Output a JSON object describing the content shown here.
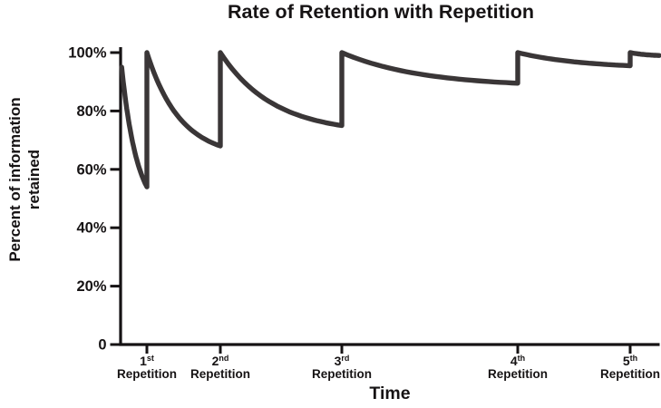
{
  "chart_data": {
    "type": "line",
    "title": "Rate of Retention with Repetition",
    "xlabel": "Time",
    "ylabel": "Percent of information retained",
    "ylabel_lines": [
      "Percent of information",
      "retained"
    ],
    "ylim": [
      0,
      100
    ],
    "grid": false,
    "legend": "none",
    "line_color": "#3a3637",
    "axis_color": "#161314",
    "y_ticks": [
      {
        "label": "100%",
        "value": 100
      },
      {
        "label": "80%",
        "value": 80
      },
      {
        "label": "60%",
        "value": 60
      },
      {
        "label": "40%",
        "value": 40
      },
      {
        "label": "20%",
        "value": 20
      },
      {
        "label": "0",
        "value": 0
      }
    ],
    "x_ticks": [
      {
        "number": "1",
        "suffix": "st",
        "word": "Repetition",
        "pos": 0.0488
      },
      {
        "number": "2",
        "suffix": "nd",
        "word": "Repetition",
        "pos": 0.1852
      },
      {
        "number": "3",
        "suffix": "rd",
        "word": "Repetition",
        "pos": 0.4108
      },
      {
        "number": "4",
        "suffix": "th",
        "word": "Repetition",
        "pos": 0.7374
      },
      {
        "number": "5",
        "suffix": "th",
        "word": "Repetition",
        "pos": 0.9461
      }
    ],
    "series": [
      {
        "name": "percent of information retained",
        "segments": [
          {
            "x_start": 0.002,
            "x_end": 0.0488,
            "y_start": 95,
            "y_end": 54,
            "decay": 1.6
          },
          {
            "x_start": 0.0488,
            "x_end": 0.1852,
            "y_start": 100,
            "y_end": 68,
            "decay": 2.2
          },
          {
            "x_start": 0.1852,
            "x_end": 0.4108,
            "y_start": 100,
            "y_end": 75,
            "decay": 2.3
          },
          {
            "x_start": 0.4108,
            "x_end": 0.7374,
            "y_start": 100,
            "y_end": 89.5,
            "decay": 2.2
          },
          {
            "x_start": 0.7374,
            "x_end": 0.9461,
            "y_start": 100,
            "y_end": 95.5,
            "decay": 1.7
          },
          {
            "x_start": 0.9461,
            "x_end": 1.0,
            "y_start": 100,
            "y_end": 99,
            "decay": 1.5
          }
        ]
      }
    ]
  }
}
